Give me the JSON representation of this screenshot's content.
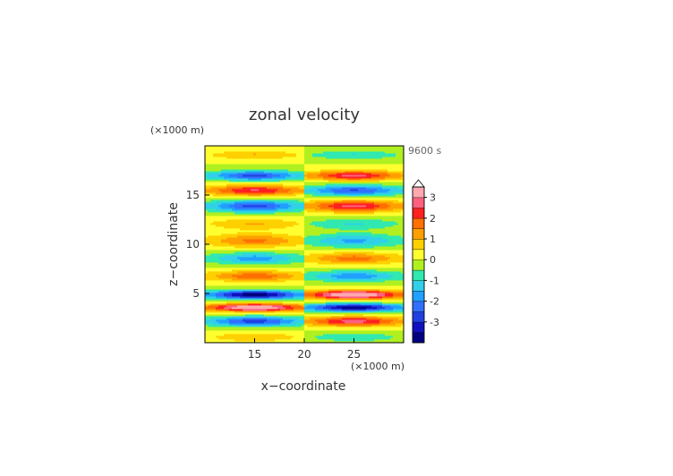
{
  "chart_data": {
    "type": "heatmap",
    "title": "zonal velocity",
    "xlabel": "x−coordinate",
    "ylabel": "z−coordinate",
    "x_unit": "(×1000 m)",
    "y_unit": "(×1000 m)",
    "time_label": "9600 s",
    "xlim": [
      10,
      30
    ],
    "ylim": [
      0,
      20
    ],
    "x_ticks": [
      15,
      20,
      25
    ],
    "y_ticks": [
      5,
      10,
      15
    ],
    "colorbar": {
      "ticks": [
        3,
        2,
        1,
        0,
        -1,
        -2,
        -3
      ],
      "levels": [
        -3.5,
        -3,
        -2.5,
        -2,
        -1.5,
        -1,
        -0.5,
        0,
        0.5,
        1,
        1.5,
        2,
        2.5,
        3,
        3.5
      ],
      "colors": [
        "#000080",
        "#1010c0",
        "#2040e0",
        "#3070ff",
        "#20a0ff",
        "#30d0e8",
        "#30e8b0",
        "#b0f020",
        "#ffff30",
        "#ffd000",
        "#ffa000",
        "#ff7000",
        "#ff2020",
        "#ff6080",
        "#ffa8b0"
      ],
      "extend": "max"
    },
    "bands": [
      {
        "z": 19.1,
        "w": 0.45,
        "a": 0.9
      },
      {
        "z": 17.0,
        "w": 0.5,
        "a": -2.3
      },
      {
        "z": 15.5,
        "w": 0.55,
        "a": 2.2
      },
      {
        "z": 13.9,
        "w": 0.6,
        "a": -2.3
      },
      {
        "z": 12.1,
        "w": 0.6,
        "a": 0.9
      },
      {
        "z": 10.4,
        "w": 0.7,
        "a": 1.4
      },
      {
        "z": 8.6,
        "w": 0.6,
        "a": -1.5
      },
      {
        "z": 6.8,
        "w": 0.55,
        "a": 1.6
      },
      {
        "z": 4.9,
        "w": 0.45,
        "a": -3.4
      },
      {
        "z": 3.6,
        "w": 0.4,
        "a": 3.3
      },
      {
        "z": 2.2,
        "w": 0.5,
        "a": -2.4
      },
      {
        "z": 0.6,
        "w": 0.5,
        "a": 0.8
      }
    ]
  }
}
